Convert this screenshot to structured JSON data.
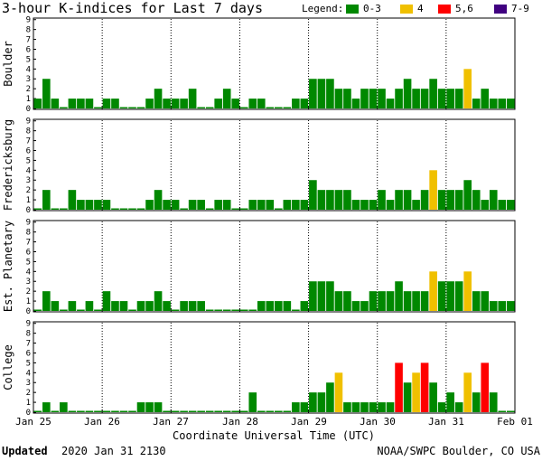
{
  "title": "3-hour K-indices for Last 7 days",
  "legend": {
    "label": "Legend:",
    "items": [
      {
        "label": "0-3",
        "color": "#008800"
      },
      {
        "label": "4",
        "color": "#f0c000"
      },
      {
        "label": "5,6",
        "color": "#ff0000"
      },
      {
        "label": "7-9",
        "color": "#400080"
      }
    ]
  },
  "footer": {
    "updated_label": "Updated",
    "updated_value": "2020 Jan 31 2130",
    "credit": "NOAA/SWPC Boulder, CO USA"
  },
  "chart_data": {
    "type": "bar",
    "xlabel": "Coordinate Universal Time (UTC)",
    "x_ticks": [
      "Jan 25",
      "Jan 26",
      "Jan 27",
      "Jan 28",
      "Jan 29",
      "Jan 30",
      "Jan 31",
      "Feb 01"
    ],
    "ylim": [
      0,
      9
    ],
    "y_ticks": [
      "0",
      "1",
      "2",
      "3",
      "4",
      "5",
      "6",
      "7",
      "8",
      "9"
    ],
    "period_hours": 3,
    "colors": {
      "low": "#008800",
      "k4": "#f0c000",
      "k56": "#ff0000",
      "k79": "#400080"
    },
    "panels": [
      {
        "station": "Boulder",
        "values": [
          1,
          3,
          1,
          0,
          1,
          1,
          1,
          0,
          1,
          1,
          0,
          0,
          0,
          1,
          2,
          1,
          1,
          1,
          2,
          0,
          0,
          1,
          2,
          1,
          0,
          1,
          1,
          0,
          0,
          0,
          1,
          1,
          3,
          3,
          3,
          2,
          2,
          1,
          2,
          2,
          2,
          1,
          2,
          3,
          2,
          2,
          3,
          2,
          2,
          2,
          4,
          1,
          2,
          1,
          1,
          1
        ]
      },
      {
        "station": "Fredericksburg",
        "values": [
          0,
          2,
          0,
          0,
          2,
          1,
          1,
          1,
          1,
          0,
          0,
          0,
          0,
          1,
          2,
          1,
          1,
          0,
          1,
          1,
          0,
          1,
          1,
          0,
          0,
          1,
          1,
          1,
          0,
          1,
          1,
          1,
          3,
          2,
          2,
          2,
          2,
          1,
          1,
          1,
          2,
          1,
          2,
          2,
          1,
          2,
          4,
          2,
          2,
          2,
          3,
          2,
          1,
          2,
          1,
          1,
          1
        ]
      },
      {
        "station": "Est. Planetary",
        "values": [
          0,
          2,
          1,
          0,
          1,
          0,
          1,
          0,
          2,
          1,
          1,
          0,
          1,
          1,
          2,
          1,
          0,
          1,
          1,
          1,
          0,
          0,
          0,
          0,
          0,
          0,
          1,
          1,
          1,
          1,
          0,
          1,
          3,
          3,
          3,
          2,
          2,
          1,
          1,
          2,
          2,
          2,
          3,
          2,
          2,
          2,
          4,
          3,
          3,
          3,
          4,
          2,
          2,
          1,
          1,
          1
        ]
      },
      {
        "station": "College",
        "values": [
          0,
          1,
          0,
          1,
          0,
          0,
          0,
          0,
          0,
          0,
          0,
          0,
          1,
          1,
          1,
          0,
          0,
          0,
          0,
          0,
          0,
          0,
          0,
          0,
          0,
          2,
          0,
          0,
          0,
          0,
          1,
          1,
          2,
          2,
          3,
          4,
          1,
          1,
          1,
          1,
          1,
          1,
          5,
          3,
          4,
          5,
          3,
          1,
          2,
          1,
          4,
          2,
          5,
          2,
          0,
          0,
          0
        ]
      }
    ]
  }
}
